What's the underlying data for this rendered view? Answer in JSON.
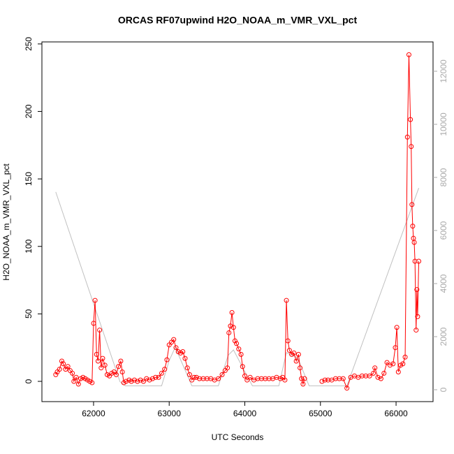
{
  "chart_data": {
    "type": "line",
    "title": "ORCAS RF07upwind H2O_NOAA_m_VMR_VXL_pct",
    "x_label": "UTC Seconds",
    "y_label": "H2O_NOAA_m_VMR_VXL_pct",
    "xlim": [
      61317,
      66489
    ],
    "xticks": [
      62000,
      63000,
      64000,
      65000,
      66000
    ],
    "ylim": [
      -15,
      251.5
    ],
    "yticks": [
      0,
      50,
      100,
      150,
      200,
      250
    ],
    "y2lim": [
      -447,
      13105
    ],
    "y2ticks": [
      0,
      2000,
      4000,
      6000,
      8000,
      10000,
      12000
    ],
    "series": [
      {
        "color": "#ff0000",
        "markers": true,
        "x": [
          61500,
          61520,
          61550,
          61580,
          61600,
          61630,
          61660,
          61690,
          61720,
          61740,
          61770,
          61800,
          61830,
          61860,
          61890,
          61920,
          61950,
          61980,
          62000,
          62020,
          62040,
          62060,
          62080,
          62100,
          62120,
          62150,
          62180,
          62210,
          62240,
          62270,
          62300,
          62330,
          62360,
          62380,
          62400,
          62430,
          62470,
          62500,
          62540,
          62580,
          62620,
          62660,
          62700,
          62740,
          62780,
          62820,
          62860,
          62900,
          62940,
          62970,
          63000,
          63030,
          63060,
          63090,
          63120,
          63150,
          63180,
          63210,
          63240,
          63270,
          63300,
          63330,
          63360,
          63400,
          63450,
          63500,
          63550,
          63600,
          63650,
          63700,
          63740,
          63770,
          63790,
          63810,
          63830,
          63850,
          63870,
          63890,
          63920,
          63950,
          63970,
          64000,
          64030,
          64070,
          64120,
          64170,
          64220,
          64270,
          64320,
          64370,
          64420,
          64470,
          64500,
          64530,
          64550,
          64570,
          64590,
          64620,
          64650,
          64680,
          64710,
          64730,
          64750,
          64770,
          64790,
          64900,
          65020,
          65060,
          65100,
          65150,
          65200,
          65250,
          65300,
          65350,
          65400,
          65450,
          65500,
          65550,
          65600,
          65650,
          65700,
          65720,
          65760,
          65800,
          65840,
          65880,
          65920,
          65960,
          65990,
          66010,
          66030,
          66060,
          66090,
          66120,
          66150,
          66170,
          66190,
          66200,
          66210,
          66220,
          66230,
          66240,
          66250,
          66265,
          66275,
          66285,
          66300
        ],
        "values": [
          5,
          7,
          9,
          15,
          13,
          9,
          11,
          8,
          6,
          0,
          3,
          -2,
          2,
          3,
          2,
          1,
          0,
          -1,
          43,
          60,
          20,
          15,
          38,
          10,
          17,
          12,
          5,
          4,
          6,
          7,
          5,
          11,
          15,
          7,
          -1,
          0,
          1,
          0,
          1,
          0,
          1,
          0,
          2,
          1,
          2,
          3,
          3,
          6,
          9,
          16,
          27,
          29,
          31,
          25,
          22,
          21,
          22,
          17,
          10,
          5,
          1,
          3,
          3,
          2,
          2,
          2,
          2,
          1,
          2,
          5,
          8,
          10,
          36,
          41,
          51,
          40,
          30,
          28,
          24,
          20,
          11,
          4,
          1,
          3,
          1,
          2,
          2,
          2,
          2,
          2,
          3,
          2,
          3,
          1,
          60,
          30,
          23,
          20,
          21,
          15,
          20,
          10,
          2,
          -2,
          2,
          null,
          0,
          1,
          1,
          1,
          2,
          2,
          2,
          -5,
          3,
          4,
          3,
          4,
          4,
          4,
          6,
          10,
          3,
          2,
          6,
          14,
          12,
          13,
          25,
          40,
          7,
          12,
          13,
          18,
          181,
          242,
          194,
          174,
          131,
          115,
          106,
          103,
          89,
          38,
          68,
          48,
          89
        ]
      },
      {
        "color": "#c0c0c0",
        "markers": false,
        "axis": "y2",
        "x": [
          61500,
          62350,
          62420,
          62900,
          63000,
          63080,
          63300,
          63650,
          63780,
          63850,
          64100,
          64450,
          64550,
          64700,
          64850,
          65350,
          66300
        ],
        "values": [
          7450,
          300,
          150,
          150,
          1100,
          1600,
          150,
          150,
          1300,
          1500,
          150,
          150,
          1400,
          1200,
          150,
          150,
          7600
        ]
      }
    ]
  }
}
